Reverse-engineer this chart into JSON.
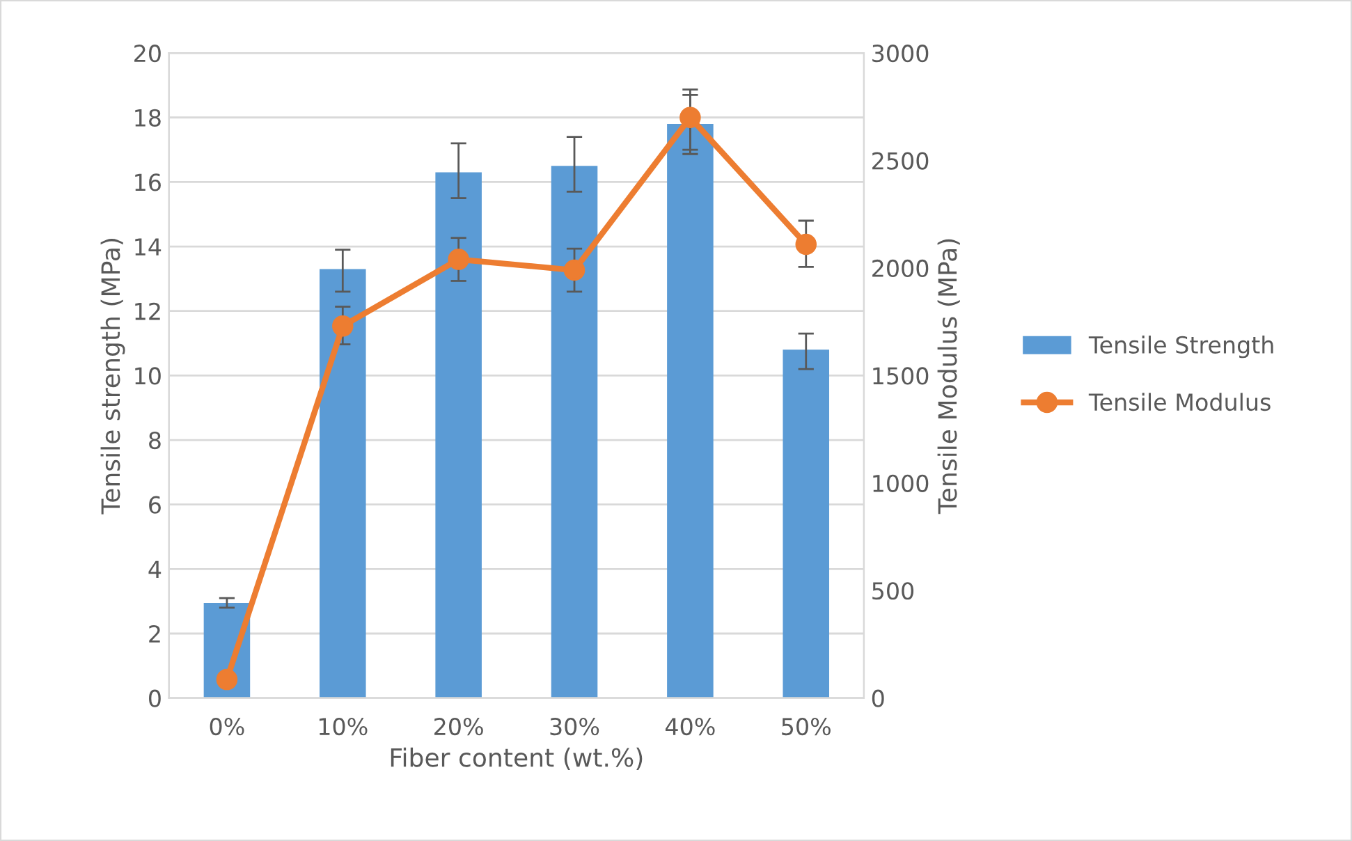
{
  "chart_data": {
    "type": "bar",
    "categories": [
      "0%",
      "10%",
      "20%",
      "30%",
      "40%",
      "50%"
    ],
    "xlabel": "Fiber content (wt.%)",
    "ylabel": "Tensile strength (MPa)",
    "y2label": "Tensile Modulus (MPa)",
    "ylim": [
      0,
      20
    ],
    "yticks": [
      0,
      2,
      4,
      6,
      8,
      10,
      12,
      14,
      16,
      18,
      20
    ],
    "y2lim": [
      0,
      3000
    ],
    "y2ticks": [
      0,
      500,
      1000,
      1500,
      2000,
      2500,
      3000
    ],
    "grid": "y",
    "legend": "right",
    "series": [
      {
        "name": "Tensile Strength",
        "color": "#5b9bd5",
        "values": [
          2.95,
          13.3,
          16.3,
          16.5,
          17.8,
          10.8
        ],
        "errors": [
          [
            2.8,
            3.1
          ],
          [
            12.6,
            13.9
          ],
          [
            15.5,
            17.2
          ],
          [
            15.7,
            17.4
          ],
          [
            17.0,
            18.7
          ],
          [
            10.2,
            11.3
          ]
        ]
      },
      {
        "name": "Tensile Modulus",
        "type": "line",
        "axis": "y2",
        "color": "#ed7d31",
        "marker": "circle",
        "values": [
          86,
          1730,
          2040,
          1990,
          2700,
          2110
        ],
        "errors": [
          null,
          [
            1645,
            1820
          ],
          [
            1940,
            2140
          ],
          [
            1890,
            2090
          ],
          [
            2530,
            2830
          ],
          [
            2005,
            2220
          ]
        ]
      }
    ]
  }
}
